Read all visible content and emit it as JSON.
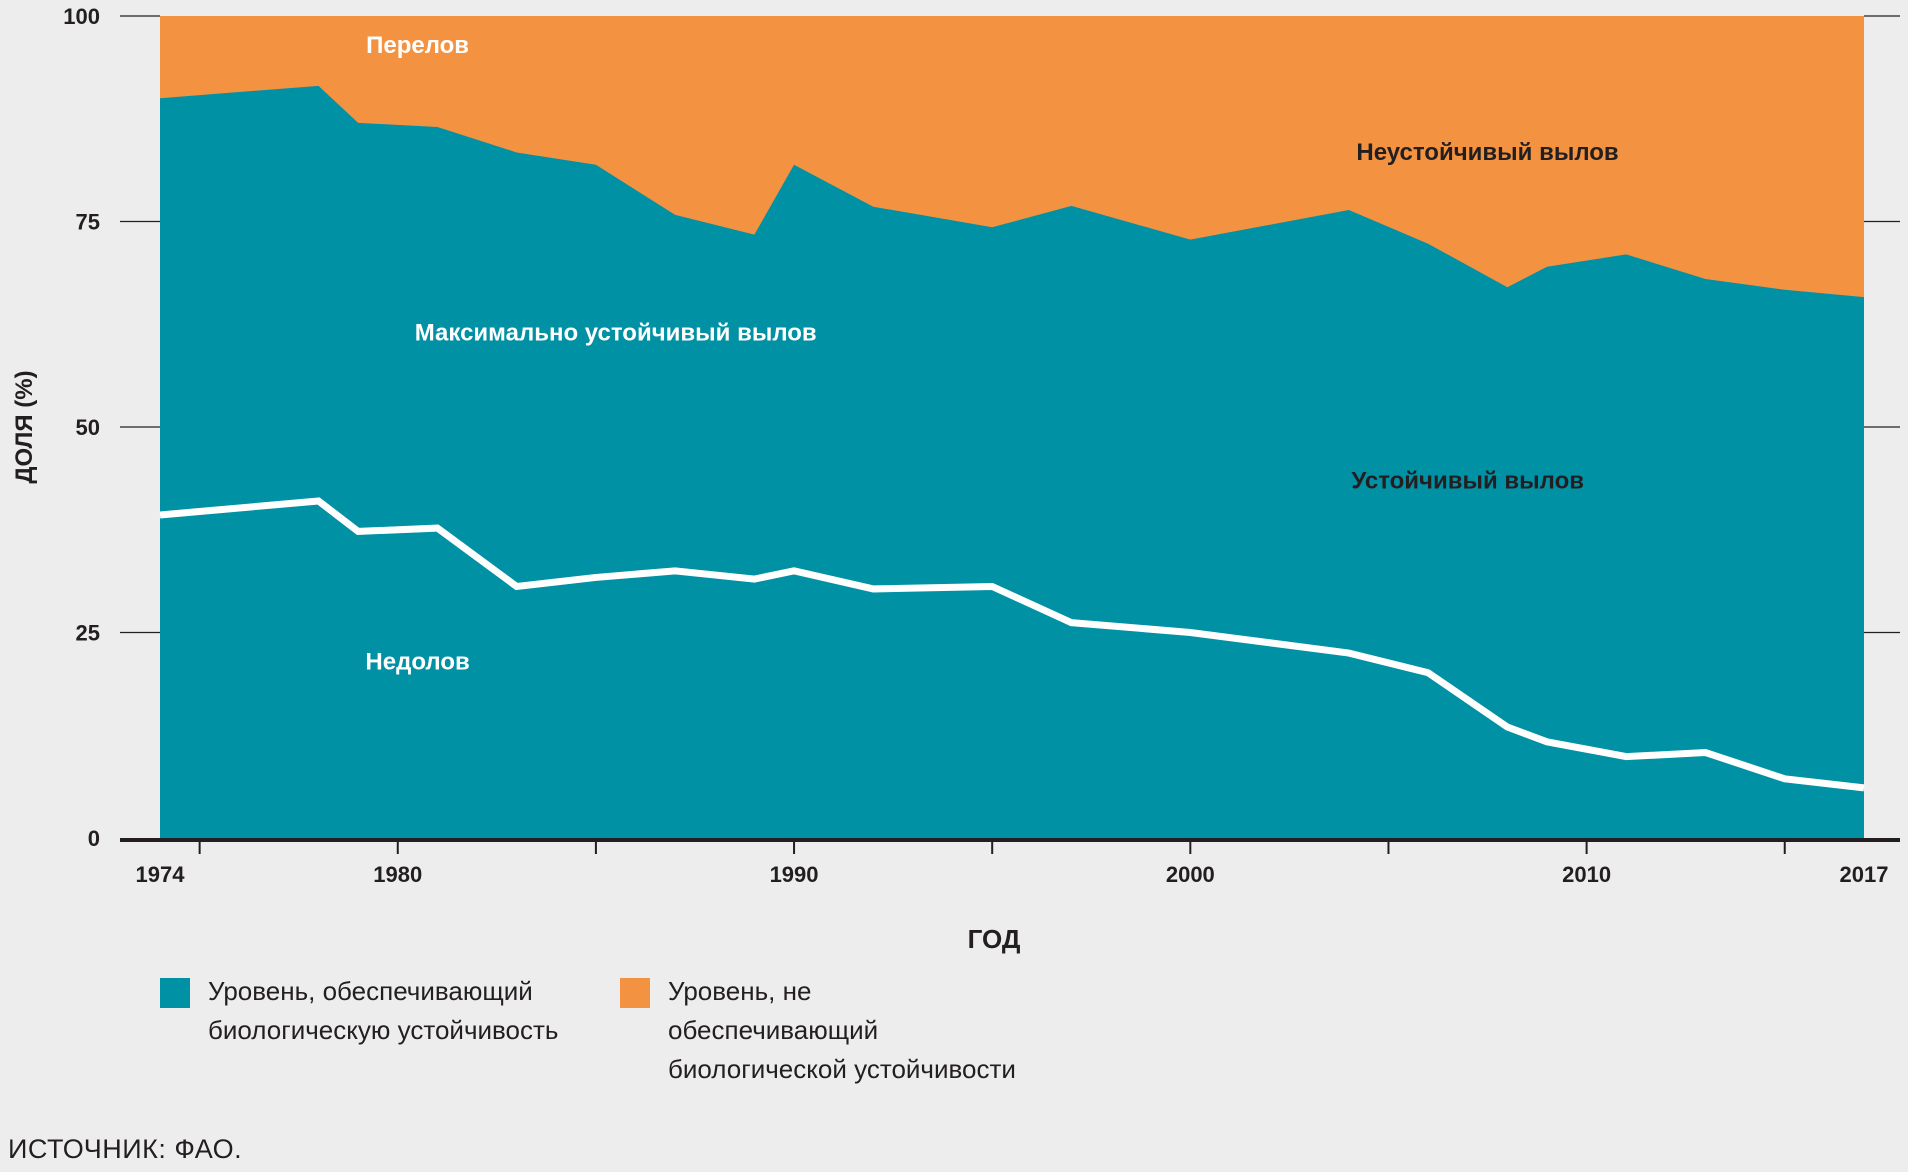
{
  "chart_data": {
    "type": "area",
    "title": "",
    "xlabel": "ГОД",
    "ylabel": "ДОЛЯ (%)",
    "ylim": [
      0,
      100
    ],
    "xlim": [
      1974,
      2017
    ],
    "yticks": [
      0,
      25,
      50,
      75,
      100
    ],
    "xticks": [
      1975,
      1980,
      1985,
      1990,
      1995,
      2000,
      2005,
      2010,
      2015
    ],
    "xtick_labels": [
      {
        "year": 1974,
        "label": "1974"
      },
      {
        "year": 1980,
        "label": "1980"
      },
      {
        "year": 1990,
        "label": "1990"
      },
      {
        "year": 2000,
        "label": "2000"
      },
      {
        "year": 2010,
        "label": "2010"
      },
      {
        "year": 2017,
        "label": "2017"
      }
    ],
    "grid": false,
    "x": [
      1974,
      1978,
      1979,
      1981,
      1983,
      1985,
      1987,
      1989,
      1990,
      1992,
      1995,
      1997,
      2000,
      2004,
      2006,
      2008,
      2009,
      2011,
      2013,
      2015,
      2017
    ],
    "series": [
      {
        "name": "Уровень, обеспечивающий биологическую устойчивость (всего)",
        "color": "#0091a5",
        "values": [
          90.0,
          91.5,
          87.0,
          86.5,
          83.4,
          81.9,
          75.8,
          73.4,
          81.9,
          76.8,
          74.3,
          76.9,
          72.8,
          76.4,
          72.3,
          67.0,
          69.5,
          71.0,
          68.0,
          66.7,
          65.8
        ]
      },
      {
        "name": "Недолов (граница)",
        "color": "#ffffff",
        "values": [
          39.3,
          41.0,
          37.3,
          37.7,
          30.6,
          31.7,
          32.5,
          31.5,
          32.5,
          30.3,
          30.6,
          26.2,
          25.0,
          22.5,
          20.1,
          13.5,
          11.7,
          9.9,
          10.4,
          7.2,
          6.1
        ]
      },
      {
        "name": "Уровень, не обеспечивающий биологической устойчивости",
        "color": "#f39241",
        "fill_to": 100
      }
    ],
    "annotations": [
      {
        "text": "Перелов",
        "x": 1980.5,
        "y": 95.5,
        "color": "#ffffff"
      },
      {
        "text": "Неустойчивый вылов",
        "x": 2007.5,
        "y": 82.5,
        "color": "#231f20"
      },
      {
        "text": "Максимально устойчивый вылов",
        "x": 1985.5,
        "y": 60.5,
        "color": "#ffffff"
      },
      {
        "text": "Устойчивый вылов",
        "x": 2007.0,
        "y": 42.5,
        "color": "#231f20"
      },
      {
        "text": "Недолов",
        "x": 1980.5,
        "y": 20.5,
        "color": "#ffffff"
      }
    ],
    "legend": {
      "placement": "bottom-left",
      "items": [
        {
          "label": "Уровень, обеспечивающий биологическую устойчивость",
          "color": "#0091a5"
        },
        {
          "label": "Уровень, не обеспечивающий биологической устойчивости",
          "color": "#f39241"
        }
      ]
    }
  },
  "source": "ИСТОЧНИК: ФАО."
}
